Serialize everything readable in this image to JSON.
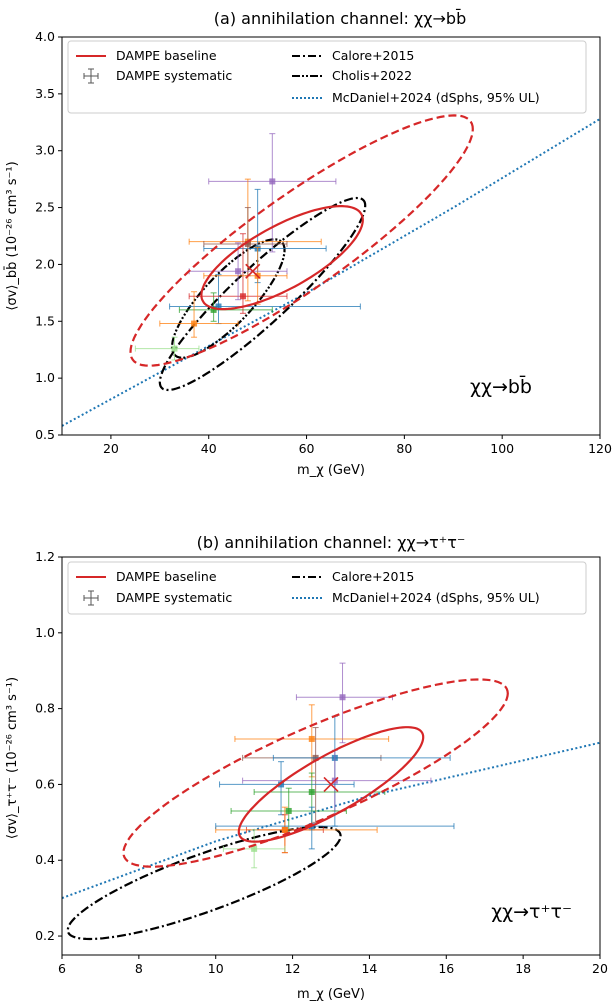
{
  "chart_data": [
    {
      "type": "scatter",
      "title": "(a) annihilation channel: χχ→bb̄",
      "corner_label": "χχ→bb̄",
      "xlabel": "m_χ (GeV)",
      "ylabel": "⟨σv⟩_bb̄ (10⁻²⁶ cm³ s⁻¹)",
      "xlim": [
        10,
        120
      ],
      "ylim": [
        0.5,
        4.0
      ],
      "xticks": [
        20,
        40,
        60,
        80,
        100,
        120
      ],
      "yticks": [
        0.5,
        1.0,
        1.5,
        2.0,
        2.5,
        3.0,
        3.5,
        4.0
      ],
      "xtick_labels": [
        "20",
        "40",
        "60",
        "80",
        "100",
        "120"
      ],
      "ytick_labels": [
        "0.5",
        "1.0",
        "1.5",
        "2.0",
        "2.5",
        "3.0",
        "3.5",
        "4.0"
      ],
      "legend": [
        {
          "label": "DAMPE baseline",
          "style": "solid",
          "color": "#d62728",
          "col": 0
        },
        {
          "label": "DAMPE systematic",
          "style": "errorbar",
          "color": "#555555",
          "col": 0
        },
        {
          "label": "Calore+2015",
          "style": "dashdot",
          "color": "#000000",
          "col": 1
        },
        {
          "label": "Cholis+2022",
          "style": "dashdotdot",
          "color": "#000000",
          "col": 1
        },
        {
          "label": "McDaniel+2024 (dSphs, 95% UL)",
          "style": "dotted",
          "color": "#1f77b4",
          "col": 1
        }
      ],
      "best_fit": {
        "x": 49,
        "y": 1.94
      },
      "baseline_contours": [
        {
          "level": "inner",
          "center": [
            55,
            2.06
          ],
          "semi_major_x": 16.5,
          "y_slope": 0.02,
          "y_halfwidth": 0.31
        },
        {
          "level": "outer",
          "center": [
            59,
            2.21
          ],
          "semi_major_x": 35,
          "y_slope": 0.028,
          "y_halfwidth": 0.5
        }
      ],
      "calore_contour": {
        "center": [
          51,
          1.74
        ],
        "half_axis_x": 21,
        "y_slope": 0.037,
        "y_halfwidth": 0.33
      },
      "cholis_contour": {
        "center": [
          44,
          1.7
        ],
        "half_axis_x": 11.5,
        "y_slope": 0.037,
        "y_halfwidth": 0.3
      },
      "mcdaniel_ul": {
        "x": [
          10,
          30,
          60,
          90,
          120
        ],
        "y": [
          0.58,
          1.05,
          1.75,
          2.5,
          3.28
        ]
      },
      "systematic_points": [
        {
          "x": 53,
          "y": 2.73,
          "xerr": [
            13,
            13
          ],
          "yerr": [
            0.62,
            0.42
          ],
          "color": "#9467bd"
        },
        {
          "x": 48,
          "y": 2.2,
          "xerr": [
            12,
            15
          ],
          "yerr": [
            0.52,
            0.55
          ],
          "color": "#ff7f0e"
        },
        {
          "x": 50,
          "y": 2.14,
          "xerr": [
            11,
            14
          ],
          "yerr": [
            0.3,
            0.52
          ],
          "color": "#1f77b4"
        },
        {
          "x": 48,
          "y": 2.18,
          "xerr": [
            9,
            8
          ],
          "yerr": [
            0.28,
            0.32
          ],
          "color": "#8c564b"
        },
        {
          "x": 42,
          "y": 1.63,
          "xerr": [
            10,
            29
          ],
          "yerr": [
            0.15,
            0.28
          ],
          "color": "#1f77b4"
        },
        {
          "x": 41,
          "y": 1.6,
          "xerr": [
            7,
            12
          ],
          "yerr": [
            0.1,
            0.15
          ],
          "color": "#2ca02c"
        },
        {
          "x": 37,
          "y": 1.48,
          "xerr": [
            7,
            9
          ],
          "yerr": [
            0.12,
            0.28
          ],
          "color": "#ff7f0e"
        },
        {
          "x": 47,
          "y": 1.72,
          "xerr": [
            11,
            9
          ],
          "yerr": [
            0.15,
            0.55
          ],
          "color": "#d62728"
        },
        {
          "x": 50,
          "y": 1.9,
          "xerr": [
            11,
            6
          ],
          "yerr": [
            0.25,
            0.25
          ],
          "color": "#ff7f0e"
        },
        {
          "x": 46,
          "y": 1.94,
          "xerr": [
            10,
            10
          ],
          "yerr": [
            0.25,
            0.25
          ],
          "color": "#9467bd"
        },
        {
          "x": 33,
          "y": 1.26,
          "xerr": [
            8,
            5
          ],
          "yerr": [
            0.1,
            0.1
          ],
          "color": "#98df8a"
        }
      ]
    },
    {
      "type": "scatter",
      "title": "(b) annihilation channel: χχ→τ⁺τ⁻",
      "corner_label": "χχ→τ⁺τ⁻",
      "xlabel": "m_χ (GeV)",
      "ylabel": "⟨σv⟩_τ⁺τ⁻ (10⁻²⁶ cm³ s⁻¹)",
      "xlim": [
        6,
        20
      ],
      "ylim": [
        0.15,
        1.2
      ],
      "xticks": [
        6,
        8,
        10,
        12,
        14,
        16,
        18,
        20
      ],
      "yticks": [
        0.2,
        0.4,
        0.6,
        0.8,
        1.0,
        1.2
      ],
      "xtick_labels": [
        "6",
        "8",
        "10",
        "12",
        "14",
        "16",
        "18",
        "20"
      ],
      "ytick_labels": [
        "0.2",
        "0.4",
        "0.6",
        "0.8",
        "1.0",
        "1.2"
      ],
      "legend": [
        {
          "label": "DAMPE baseline",
          "style": "solid",
          "color": "#d62728",
          "col": 0
        },
        {
          "label": "DAMPE systematic",
          "style": "errorbar",
          "color": "#555555",
          "col": 0
        },
        {
          "label": "Calore+2015",
          "style": "dashdot",
          "color": "#000000",
          "col": 1
        },
        {
          "label": "McDaniel+2024 (dSphs, 95% UL)",
          "style": "dotted",
          "color": "#1f77b4",
          "col": 1
        }
      ],
      "best_fit": {
        "x": 13.0,
        "y": 0.6
      },
      "baseline_contours": [
        {
          "level": "inner",
          "center": [
            13.0,
            0.6
          ],
          "semi_major_x": 2.4,
          "y_slope": 0.052,
          "y_halfwidth": 0.085
        },
        {
          "level": "outer",
          "center": [
            12.6,
            0.63
          ],
          "semi_major_x": 5.0,
          "y_slope": 0.042,
          "y_halfwidth": 0.13
        }
      ],
      "calore_contour": {
        "center": [
          9.7,
          0.34
        ],
        "half_axis_x": 3.55,
        "y_slope": 0.035,
        "y_halfwidth": 0.08
      },
      "mcdaniel_ul": {
        "x": [
          6,
          10,
          14,
          20
        ],
        "y": [
          0.3,
          0.45,
          0.57,
          0.71
        ]
      },
      "systematic_points": [
        {
          "x": 13.3,
          "y": 0.83,
          "xerr": [
            1.2,
            1.3
          ],
          "yerr": [
            0.12,
            0.09
          ],
          "color": "#9467bd"
        },
        {
          "x": 12.5,
          "y": 0.72,
          "xerr": [
            2.0,
            2.0
          ],
          "yerr": [
            0.1,
            0.09
          ],
          "color": "#ff7f0e"
        },
        {
          "x": 12.6,
          "y": 0.67,
          "xerr": [
            1.9,
            1.7
          ],
          "yerr": [
            0.17,
            0.08
          ],
          "color": "#8c564b"
        },
        {
          "x": 13.1,
          "y": 0.67,
          "xerr": [
            1.6,
            3.0
          ],
          "yerr": [
            0.18,
            0.11
          ],
          "color": "#1f77b4"
        },
        {
          "x": 13.1,
          "y": 0.61,
          "xerr": [
            2.4,
            2.5
          ],
          "yerr": [
            0.08,
            0.08
          ],
          "color": "#9467bd"
        },
        {
          "x": 11.7,
          "y": 0.6,
          "xerr": [
            1.6,
            1.9
          ],
          "yerr": [
            0.08,
            0.06
          ],
          "color": "#1f77b4"
        },
        {
          "x": 12.5,
          "y": 0.58,
          "xerr": [
            1.5,
            1.9
          ],
          "yerr": [
            0.1,
            0.05
          ],
          "color": "#2ca02c"
        },
        {
          "x": 11.9,
          "y": 0.53,
          "xerr": [
            1.5,
            1.5
          ],
          "yerr": [
            0.06,
            0.06
          ],
          "color": "#2ca02c"
        },
        {
          "x": 11.8,
          "y": 0.48,
          "xerr": [
            1.0,
            1.0
          ],
          "yerr": [
            0.06,
            0.04
          ],
          "color": "#d62728"
        },
        {
          "x": 11.8,
          "y": 0.48,
          "xerr": [
            1.8,
            2.4
          ],
          "yerr": [
            0.06,
            0.06
          ],
          "color": "#ff7f0e"
        },
        {
          "x": 12.5,
          "y": 0.49,
          "xerr": [
            2.5,
            3.7
          ],
          "yerr": [
            0.06,
            0.05
          ],
          "color": "#1f77b4"
        },
        {
          "x": 11.0,
          "y": 0.43,
          "xerr": [
            0.8,
            0.8
          ],
          "yerr": [
            0.05,
            0.05
          ],
          "color": "#98df8a"
        }
      ]
    }
  ]
}
